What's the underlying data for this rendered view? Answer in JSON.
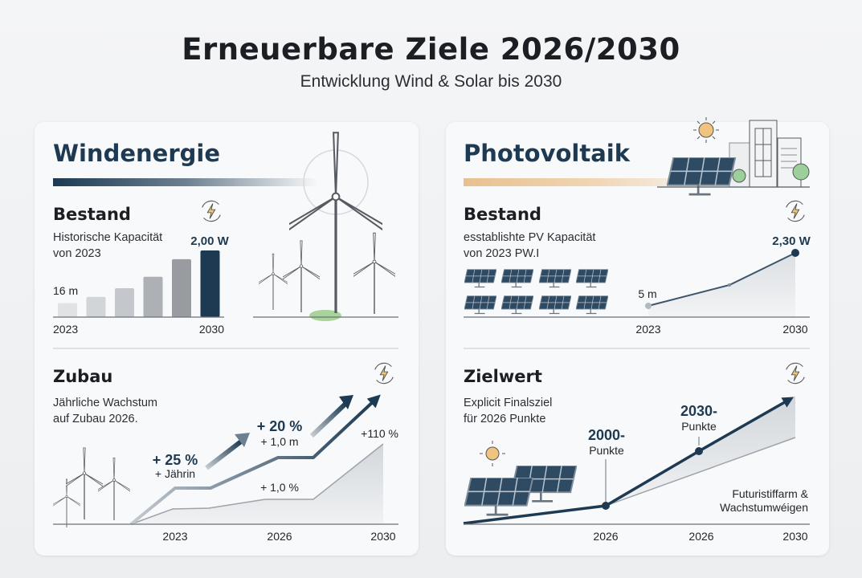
{
  "header": {
    "title": "Erneuerbare Ziele 2026/2030",
    "subtitle": "Entwicklung Wind & Solar bis 2030"
  },
  "colors": {
    "navy": "#1d3a52",
    "wind_accent": "#1d3a52",
    "pv_accent": "#e8c08f",
    "grey": "#9aa0a6",
    "sun": "#f0c37f",
    "tree": "#9ccf9a"
  },
  "wind": {
    "title": "Windenergie",
    "bestand": {
      "heading": "Bestand",
      "desc1": "Historische Kapacität",
      "desc2": "von 2023",
      "start_label": "16 m",
      "end_label": "2,00 W",
      "x_start": "2023",
      "x_end": "2030",
      "icon": "lightning-cycle-icon"
    },
    "zubau": {
      "heading": "Zubau",
      "desc1": "Jährliche Wachstum",
      "desc2": "auf Zubau 2026.",
      "ann1a": "+ 25 %",
      "ann1b": "+ Jährin",
      "ann2a": "+ 20 %",
      "ann2b": "+ 1,0 m",
      "ann3": "+110 %",
      "ann4": "+ 1,0 %",
      "years": [
        "2023",
        "2026",
        "2030"
      ],
      "icon": "lightning-cycle-icon"
    }
  },
  "pv": {
    "title": "Photovoltaik",
    "bestand": {
      "heading": "Bestand",
      "desc1": "esstablishte PV Kapacität",
      "desc2": "von 2023 PW.I",
      "start_label": "5 m",
      "end_label": "2,30 W",
      "x_start": "2023",
      "x_end": "2030",
      "icon": "lightning-cycle-icon"
    },
    "zielwert": {
      "heading": "Zielwert",
      "desc1": "Explicit Finalsziel",
      "desc2": "für 2026 Punkte",
      "p1a": "2000-",
      "p1b": "Punkte",
      "p2a": "2030-",
      "p2b": "Punkte",
      "note1": "Futuristiffarm &",
      "note2": "Wachstumwéigen",
      "years": [
        "2026",
        "2026",
        "2030"
      ],
      "icon": "lightning-cycle-icon"
    }
  },
  "chart_data": [
    {
      "type": "bar",
      "title": "Bestand",
      "categories": [
        "2023",
        "",
        "",
        "",
        "",
        "2030"
      ],
      "values": [
        16,
        23,
        33,
        46,
        66,
        76
      ],
      "data_labels": {
        "first": "16 m",
        "last": "2,00 W"
      },
      "highlight_last": true,
      "grid": false
    },
    {
      "type": "area",
      "title": "Zubau",
      "x": [
        "",
        "2023",
        "",
        "2026",
        "",
        "2030"
      ],
      "series": [
        {
          "values": [
            0,
            17,
            17,
            31,
            31,
            58
          ]
        },
        {
          "values": [
            0,
            7,
            7,
            12,
            12,
            38
          ]
        }
      ],
      "annotations": [
        "+ 25 %",
        "+ Jährin",
        "+ 20 %",
        "+ 1,0 m",
        "+110 %",
        "+ 1,0 %"
      ],
      "grid": false
    },
    {
      "type": "line",
      "title": "Bestand",
      "x": [
        "2023",
        "",
        "2030"
      ],
      "values": [
        5,
        28,
        64
      ],
      "data_labels": {
        "first": "5 m",
        "last": "2,30 W"
      },
      "grid": false
    },
    {
      "type": "area",
      "title": "Zielwert",
      "x": [
        "",
        "2026",
        "2026",
        "2030"
      ],
      "series": [
        {
          "values": [
            0,
            9,
            37,
            65
          ]
        },
        {
          "values": [
            0,
            9,
            null,
            43
          ]
        }
      ],
      "annotations": [
        "2000- Punkte",
        "2030- Punkte",
        "Futuristiffarm & Wachstumwéigen"
      ],
      "grid": false
    }
  ]
}
